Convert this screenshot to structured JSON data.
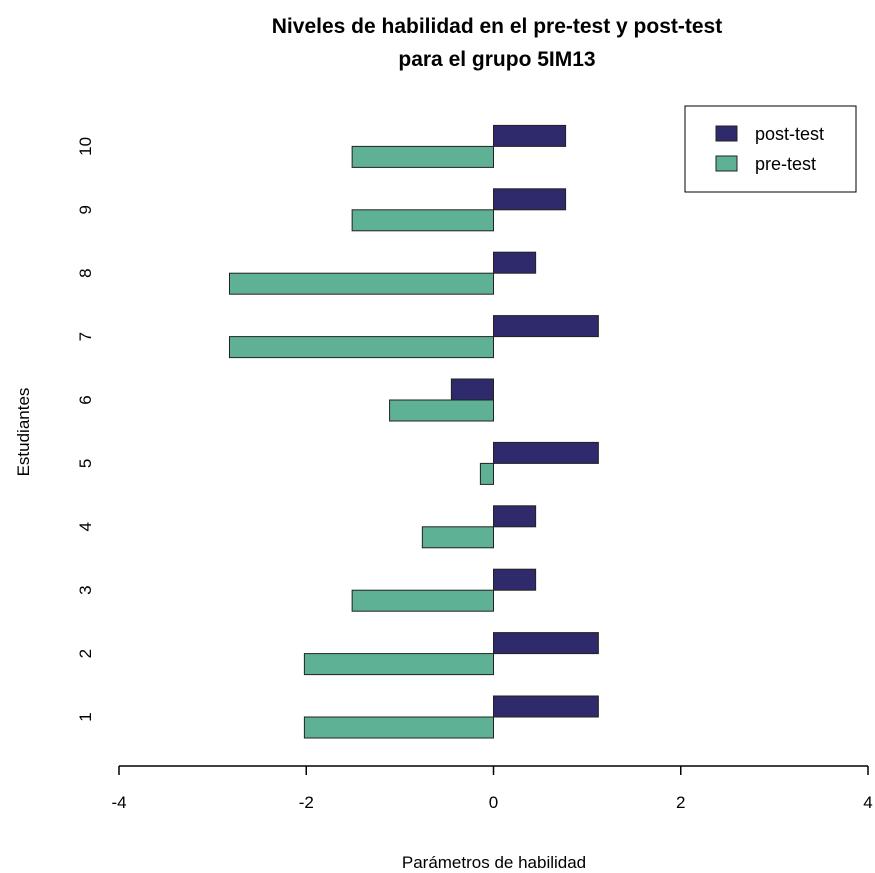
{
  "chart_data": {
    "type": "bar",
    "orientation": "horizontal",
    "title_lines": [
      "Niveles de habilidad en el pre-test y post-test",
      "para el grupo 5IM13"
    ],
    "xlabel": "Parámetros de habilidad",
    "ylabel": "Estudiantes",
    "xlim": [
      -4,
      4
    ],
    "xticks": [
      "-4",
      "-2",
      "0",
      "2",
      "4"
    ],
    "categories": [
      "1",
      "2",
      "3",
      "4",
      "5",
      "6",
      "7",
      "8",
      "9",
      "10"
    ],
    "series": [
      {
        "name": "post-test",
        "color": "#2e2a6b",
        "values": [
          1.12,
          1.12,
          0.45,
          0.45,
          1.12,
          -0.45,
          1.12,
          0.45,
          0.77,
          0.77
        ]
      },
      {
        "name": "pre-test",
        "color": "#5fb196",
        "values": [
          -2.02,
          -2.02,
          -1.51,
          -0.76,
          -0.14,
          -1.11,
          -2.82,
          -2.82,
          -1.51,
          -1.51
        ]
      }
    ],
    "legend_position": "top-right",
    "grid": false
  }
}
